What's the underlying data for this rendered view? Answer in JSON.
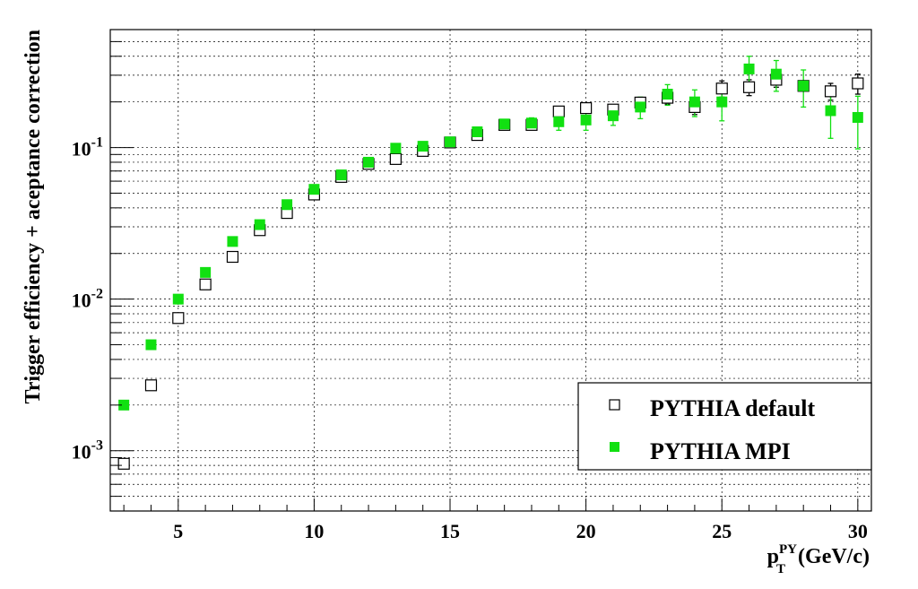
{
  "chart_data": {
    "type": "scatter",
    "title": "",
    "ylabel": "Trigger efficiency + aceptance correction",
    "xlabel": {
      "symbol": "p",
      "superscript": "PY",
      "subscript": "T",
      "unit": "(GeV/c)"
    },
    "xlim": [
      2.5,
      30.5
    ],
    "ylim": [
      0.0004,
      0.6
    ],
    "yscale": "log",
    "grid": true,
    "x_ticks": [
      5,
      10,
      15,
      20,
      25,
      30
    ],
    "x_tick_labels": [
      "5",
      "10",
      "15",
      "20",
      "25",
      "30"
    ],
    "y_ticks": [
      0.001,
      0.01,
      0.1
    ],
    "y_tick_labels": [
      {
        "base": "10",
        "exp": "-3"
      },
      {
        "base": "10",
        "exp": "-2"
      },
      {
        "base": "10",
        "exp": "-1"
      }
    ],
    "legend": {
      "placement": "bottom-right"
    },
    "series": [
      {
        "name": "PYTHIA default",
        "marker": "open-square",
        "color": "#000000",
        "x": [
          3,
          4,
          5,
          6,
          7,
          8,
          9,
          10,
          11,
          12,
          13,
          14,
          15,
          16,
          17,
          18,
          19,
          20,
          21,
          22,
          23,
          24,
          25,
          26,
          27,
          28,
          29,
          30
        ],
        "y": [
          0.00082,
          0.0027,
          0.0075,
          0.0125,
          0.019,
          0.0285,
          0.037,
          0.049,
          0.064,
          0.078,
          0.084,
          0.095,
          0.108,
          0.121,
          0.141,
          0.141,
          0.173,
          0.182,
          0.178,
          0.198,
          0.213,
          0.185,
          0.245,
          0.25,
          0.28,
          0.255,
          0.235,
          0.265
        ],
        "err": [
          0,
          0,
          0,
          0,
          0,
          0,
          0,
          0,
          0,
          0,
          0,
          0,
          0,
          0,
          0,
          0,
          0,
          0,
          0,
          0,
          0.02,
          0.02,
          0.03,
          0.03,
          0.03,
          0,
          0.03,
          0.04
        ]
      },
      {
        "name": "PYTHIA MPI",
        "marker": "filled-square",
        "color": "#11e011",
        "x": [
          3,
          4,
          5,
          6,
          7,
          8,
          9,
          10,
          11,
          12,
          13,
          14,
          15,
          16,
          17,
          18,
          19,
          20,
          21,
          22,
          23,
          24,
          25,
          26,
          27,
          28,
          29,
          30
        ],
        "y": [
          0.002,
          0.005,
          0.01,
          0.015,
          0.024,
          0.031,
          0.042,
          0.053,
          0.066,
          0.08,
          0.099,
          0.102,
          0.109,
          0.127,
          0.143,
          0.145,
          0.148,
          0.152,
          0.162,
          0.185,
          0.225,
          0.2,
          0.2,
          0.33,
          0.305,
          0.255,
          0.175,
          0.158
        ],
        "err": [
          0,
          0,
          0,
          0,
          0,
          0,
          0,
          0,
          0,
          0,
          0,
          0,
          0,
          0,
          0,
          0.012,
          0.018,
          0.022,
          0.022,
          0.03,
          0.035,
          0.04,
          0.05,
          0.07,
          0.07,
          0.07,
          0.06,
          0.06
        ]
      }
    ]
  }
}
